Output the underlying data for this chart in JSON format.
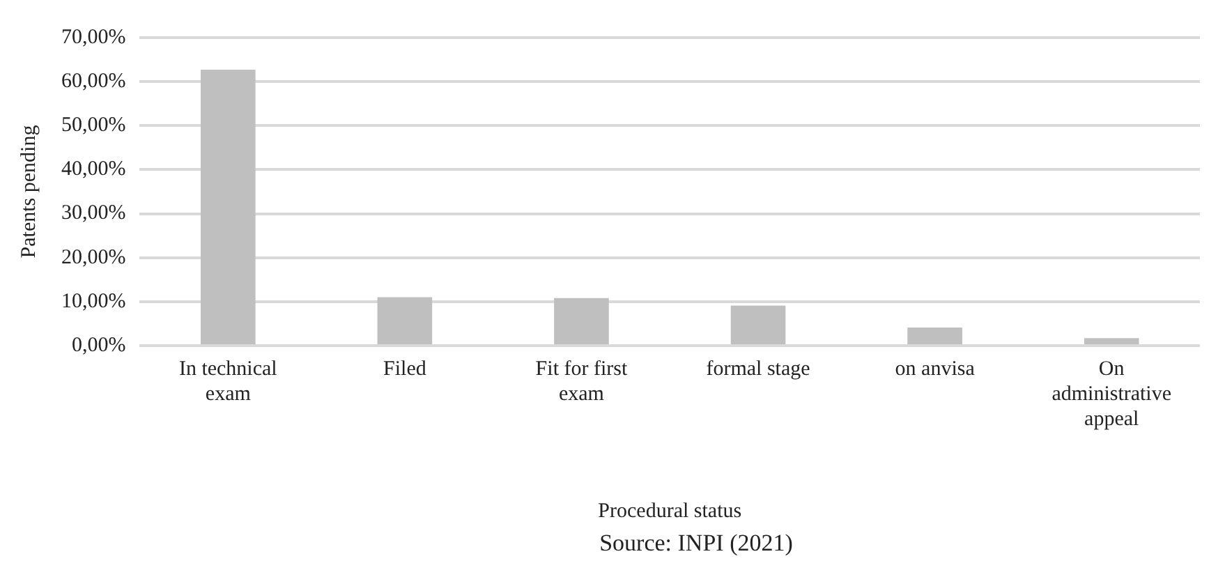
{
  "chart_data": {
    "type": "bar",
    "xlabel": "Procedural status",
    "ylabel": "Patents pending",
    "categories": [
      "In technical exam",
      "Filed",
      "Fit for first exam",
      "formal stage",
      "on anvisa",
      "On administrative appeal"
    ],
    "values": [
      62.7,
      11.0,
      10.8,
      9.1,
      4.1,
      1.7
    ],
    "color": "#bfbfbf",
    "ylim": [
      0,
      70
    ],
    "yticks": [
      {
        "value": 0,
        "label": "0,00%"
      },
      {
        "value": 10,
        "label": "10,00%"
      },
      {
        "value": 20,
        "label": "20,00%"
      },
      {
        "value": 30,
        "label": "30,00%"
      },
      {
        "value": 40,
        "label": "40,00%"
      },
      {
        "value": 50,
        "label": "50,00%"
      },
      {
        "value": 60,
        "label": "60,00%"
      },
      {
        "value": 70,
        "label": "70,00%"
      }
    ],
    "grid": "y",
    "legend": false,
    "annotations": [
      "Source: INPI (2021)"
    ]
  }
}
